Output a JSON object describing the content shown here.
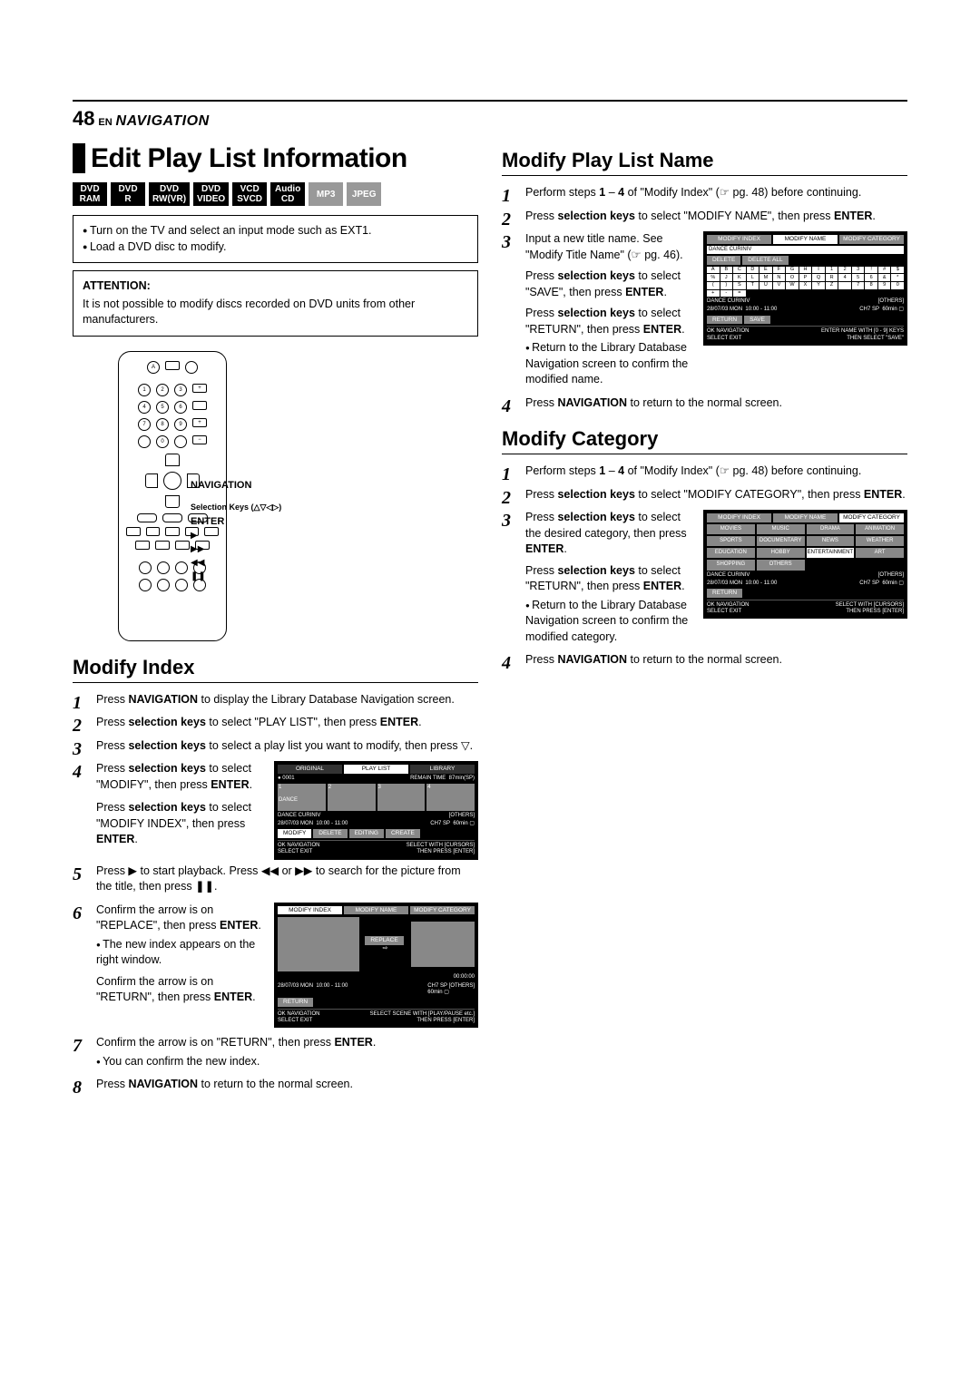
{
  "page": {
    "number": "48",
    "lang": "EN",
    "section": "NAVIGATION"
  },
  "title": "Edit Play List Information",
  "formats": [
    "DVD\nRAM",
    "DVD\nR",
    "DVD\nRW(VR)",
    "DVD\nVIDEO",
    "VCD\nSVCD",
    "Audio\nCD",
    "MP3",
    "JPEG"
  ],
  "format_styles": [
    "",
    "",
    "",
    "",
    "",
    "",
    "light",
    "light"
  ],
  "intro_bullets": [
    "Turn on the TV and select an input mode such as EXT1.",
    "Load a DVD disc to modify."
  ],
  "attention": {
    "title": "ATTENTION:",
    "text": "It is not possible to modify discs recorded on DVD units from other manufacturers."
  },
  "remote_labels": {
    "nav": "NAVIGATION",
    "sel": "Selection Keys (△▽◁▷)",
    "enter": "ENTER",
    "fwd": "▶",
    "ff": "▶▶",
    "rw": "◀◀",
    "pause": "❚❚"
  },
  "modify_index": {
    "heading": "Modify Index",
    "s1": "Press <b>NAVIGATION</b> to display the Library Database Navigation screen.",
    "s2": "Press <b>selection keys</b> to select \"PLAY LIST\", then press <b>ENTER</b>.",
    "s3": "Press <b>selection keys</b> to select a play list you want to modify, then press ▽.",
    "s4": "Press <b>selection keys</b> to select \"MODIFY\", then press <b>ENTER</b>.",
    "s5": "Press <b>selection keys</b> to select \"MODIFY INDEX\", then press <b>ENTER</b>.",
    "s6": "Press ▶ to start playback. Press ◀◀ or ▶▶ to search for the picture from the title, then press ❚❚.",
    "s7": "Confirm the arrow is on \"REPLACE\", then press <b>ENTER</b>.",
    "s7b": "The new index appears on the right window.",
    "s8": "Confirm the arrow is on \"RETURN\", then press <b>ENTER</b>.",
    "s8b": "You can confirm the new index.",
    "s9": "Press <b>NAVIGATION</b> to return to the normal screen."
  },
  "modify_name": {
    "heading": "Modify Play List Name",
    "s1": "Perform steps <b>1</b> – <b>4</b> of \"Modify Index\" (☞ pg. 48) before continuing.",
    "s2": "Press <b>selection keys</b> to select \"MODIFY NAME\", then press <b>ENTER</b>.",
    "s3": "Input a new title name. See \"Modify Title Name\" (☞ pg. 46).",
    "s4": "Press <b>selection keys</b> to select \"SAVE\", then press <b>ENTER</b>.",
    "s5": "Press <b>selection keys</b> to select \"RETURN\", then press <b>ENTER</b>.",
    "s5b": "Return to the Library Database Navigation screen to confirm the modified name.",
    "s6": "Press <b>NAVIGATION</b> to return to the normal screen."
  },
  "modify_cat": {
    "heading": "Modify Category",
    "s1": "Perform steps <b>1</b> – <b>4</b> of \"Modify Index\" (☞ pg. 48) before continuing.",
    "s2": "Press <b>selection keys</b> to select \"MODIFY CATEGORY\", then press <b>ENTER</b>.",
    "s3": "Press <b>selection keys</b> to select the desired category, then press <b>ENTER</b>.",
    "s4": "Press <b>selection keys</b> to select \"RETURN\", then press <b>ENTER</b>.",
    "s4b": "Return to the Library Database Navigation screen to confirm the modified category.",
    "s5": "Press <b>NAVIGATION</b> to return to the normal screen."
  },
  "osd1": {
    "tabs": [
      "ORIGINAL",
      "PLAY LIST",
      "LIBRARY"
    ],
    "id": "0001",
    "remain": "REMAIN TIME",
    "time": "87min(SP)",
    "thumb_label": "DANCE",
    "title": "DANCE CURINIV",
    "others": "[OTHERS]",
    "date": "28/07/03 MON",
    "range": "10:00 - 11:00",
    "ch": "CH7 SP",
    "dur": "60min",
    "btns": [
      "MODIFY",
      "DELETE",
      "EDITING",
      "CREATE"
    ],
    "foot_l": "OK   NAVIGATION",
    "foot_l2": "SELECT   EXIT",
    "foot_r": "SELECT WITH [CURSORS]",
    "foot_r2": "THEN PRESS [ENTER]"
  },
  "osd2": {
    "tabs": [
      "MODIFY INDEX",
      "MODIFY NAME",
      "MODIFY CATEGORY"
    ],
    "replace": "REPLACE",
    "timer": "00:00:00",
    "date": "28/07/03 MON",
    "range": "10:00 - 11:00",
    "ch": "CH7 SP",
    "others": "[OTHERS]",
    "dur": "60min",
    "btn": "RETURN",
    "foot_l": "OK   NAVIGATION",
    "foot_l2": "SELECT   EXIT",
    "foot_r": "SELECT SCENE WITH [PLAY/PAUSE etc.]",
    "foot_r2": "THEN PRESS [ENTER]"
  },
  "osd3": {
    "tabs": [
      "MODIFY INDEX",
      "MODIFY NAME",
      "MODIFY CATEGORY"
    ],
    "input": "DANCE CURINIV",
    "btns": [
      "DELETE",
      "DELETE ALL"
    ],
    "chars": [
      "A",
      "B",
      "C",
      "D",
      "E",
      "F",
      "G",
      "H",
      "I",
      "1",
      "2",
      "3",
      "!",
      "#",
      "$",
      "%",
      "J",
      "K",
      "L",
      "M",
      "N",
      "O",
      "P",
      "Q",
      "R",
      "4",
      "5",
      "6",
      "&",
      "*",
      "(",
      ")",
      "S",
      "T",
      "U",
      "V",
      "W",
      "X",
      "Y",
      "Z",
      " ",
      "7",
      "8",
      "9",
      "0",
      "+",
      "-",
      "="
    ],
    "title": "DANCE CURINIV",
    "others": "[OTHERS]",
    "date": "28/07/03 MON",
    "range": "10:00 - 11:00",
    "ch": "CH7 SP",
    "dur": "60min",
    "btns2": [
      "RETURN",
      "SAVE"
    ],
    "foot_l": "OK   NAVIGATION",
    "foot_l2": "SELECT   EXIT",
    "foot_r": "ENTER NAME WITH [0 - 9] KEYS",
    "foot_r2": "THEN SELECT \"SAVE\""
  },
  "osd4": {
    "tabs": [
      "MODIFY INDEX",
      "MODIFY NAME",
      "MODIFY CATEGORY"
    ],
    "cats": [
      "MOVIES",
      "MUSIC",
      "DRAMA",
      "ANIMATION",
      "SPORTS",
      "DOCUMENTARY",
      "NEWS",
      "WEATHER",
      "EDUCATION",
      "HOBBY",
      "ENTERTAINMENT",
      "ART",
      "SHOPPING",
      "OTHERS"
    ],
    "title": "DANCE CURINIV",
    "others": "[OTHERS]",
    "date": "28/07/03 MON",
    "range": "10:00 - 11:00",
    "ch": "CH7 SP",
    "dur": "60min",
    "btn": "RETURN",
    "foot_l": "OK   NAVIGATION",
    "foot_l2": "SELECT   EXIT",
    "foot_r": "SELECT WITH [CURSORS]",
    "foot_r2": "THEN PRESS [ENTER]"
  }
}
